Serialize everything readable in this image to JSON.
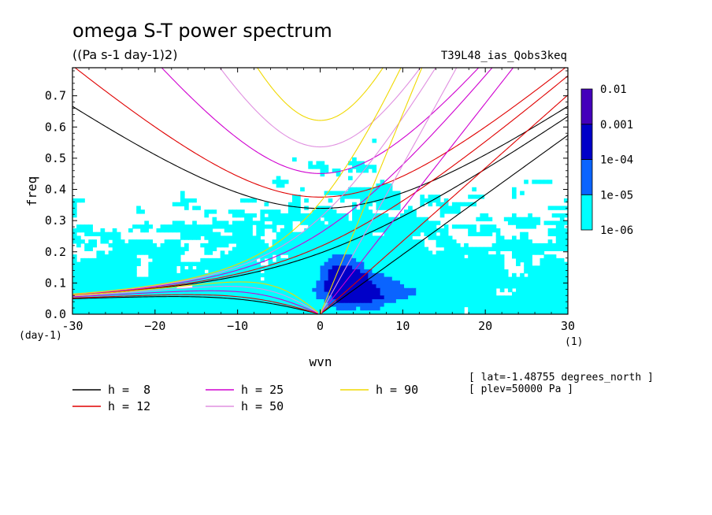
{
  "chart_data": {
    "type": "heatmap",
    "title": "omega S-T power spectrum",
    "subtitle": "((Pa s-1 day-1)2)",
    "experiment": "T39L48_ias_Qobs3keq",
    "xlabel": "wvn",
    "ylabel": "freq",
    "x_unit": "(1)",
    "y_unit": "(day-1)",
    "xlim": [
      -30,
      30
    ],
    "ylim": [
      0,
      0.79
    ],
    "x_ticks": [
      -30,
      -20,
      -10,
      0,
      10,
      20,
      30
    ],
    "x_tick_labels": [
      "-30",
      "−20",
      "−10",
      "0",
      "10",
      "20",
      "30"
    ],
    "y_ticks": [
      0,
      0.1,
      0.2,
      0.3,
      0.4,
      0.5,
      0.6,
      0.7
    ],
    "y_tick_labels": [
      "0.0",
      "0.1",
      "0.2",
      "0.3",
      "0.4",
      "0.5",
      "0.6",
      "0.7"
    ],
    "colorbar": {
      "levels": [
        1e-06,
        1e-05,
        0.0001,
        0.001,
        0.01
      ],
      "labels": [
        "1e-06",
        "1e-05",
        "1e-04",
        "0.001",
        "0.01"
      ],
      "colors": [
        "#00ffff",
        "#0a64ff",
        "#0000c8",
        "#4400bb"
      ]
    },
    "series": [
      {
        "name": "h =  8",
        "value": 8,
        "color": "#000000"
      },
      {
        "name": "h = 12",
        "value": 12,
        "color": "#e00000"
      },
      {
        "name": "h = 25",
        "value": 25,
        "color": "#d000d0"
      },
      {
        "name": "h = 50",
        "value": 50,
        "color": "#e090e0"
      },
      {
        "name": "h = 90",
        "value": 90,
        "color": "#f0d800"
      }
    ],
    "annotations": [
      "[ lat=-1.48755 degrees_north ]",
      "[ plev=50000 Pa ]"
    ]
  }
}
